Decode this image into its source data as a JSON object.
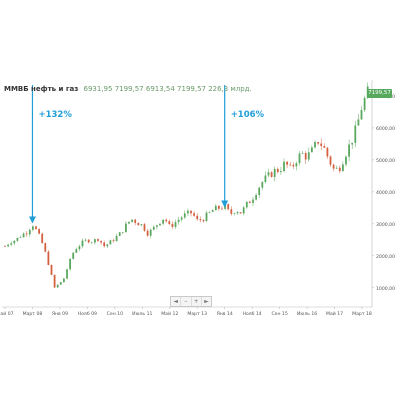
{
  "header": {
    "title": "ММВБ нефть и газ",
    "values": "6931,95  7199,57  6913,54  7199,57  226,3 млрд."
  },
  "last_price_tag": "7199,57",
  "annotations": [
    {
      "label": "+132%",
      "at_x": "Март 08",
      "arrow_to_y": 3000
    },
    {
      "label": "+106%",
      "at_x": "Янв 14",
      "arrow_to_y": 3500
    }
  ],
  "nav": [
    "◄",
    "–",
    "+",
    "►"
  ],
  "chart_data": {
    "type": "candlestick",
    "title": "ММВБ нефть и газ",
    "xlabel": "",
    "ylabel": "",
    "x_ticks": [
      "Май 07",
      "Март 08",
      "Янв 09",
      "Нояб 09",
      "Сен 10",
      "Июль 11",
      "Май 12",
      "Март 13",
      "Янв 14",
      "Нояб 14",
      "Сен 15",
      "Июль 16",
      "Май 17",
      "Март 18"
    ],
    "y_ticks": [
      1000,
      2000,
      3000,
      4000,
      5000,
      6000,
      7000
    ],
    "y_tick_labels": [
      "1000,00",
      "2000,00",
      "3000,00",
      "4000,00",
      "5000,00",
      "6000,00",
      "7000,00"
    ],
    "ylim": [
      400,
      7500
    ],
    "grid": false,
    "legend": "none",
    "colors": {
      "up": "#5aa85f",
      "down": "#d3603f",
      "annotation": "#1f9ed8",
      "axis": "#bbbbbb"
    },
    "points": [
      [
        "Май 07",
        2300
      ],
      [
        "Июль 07",
        2450
      ],
      [
        "Сен 07",
        2500
      ],
      [
        "Нояб 07",
        2650
      ],
      [
        "Янв 08",
        2750
      ],
      [
        "Март 08",
        3000
      ],
      [
        "Май 08",
        2700
      ],
      [
        "Июль 08",
        2300
      ],
      [
        "Сен 08",
        1700
      ],
      [
        "Нояб 08",
        1000
      ],
      [
        "Янв 09",
        1150
      ],
      [
        "Март 09",
        1350
      ],
      [
        "Май 09",
        2000
      ],
      [
        "Июль 09",
        2250
      ],
      [
        "Сен 09",
        2400
      ],
      [
        "Нояб 09",
        2500
      ],
      [
        "Янв 10",
        2450
      ],
      [
        "Март 10",
        2550
      ],
      [
        "Май 10",
        2300
      ],
      [
        "Июль 10",
        2400
      ],
      [
        "Сен 10",
        2550
      ],
      [
        "Нояб 10",
        2700
      ],
      [
        "Янв 11",
        2950
      ],
      [
        "Март 11",
        3150
      ],
      [
        "Май 11",
        3050
      ],
      [
        "Июль 11",
        2950
      ],
      [
        "Сен 11",
        2700
      ],
      [
        "Нояб 11",
        2850
      ],
      [
        "Янв 12",
        3050
      ],
      [
        "Март 12",
        3200
      ],
      [
        "Май 12",
        2900
      ],
      [
        "Июль 12",
        3050
      ],
      [
        "Сен 12",
        3200
      ],
      [
        "Нояб 12",
        3300
      ],
      [
        "Янв 13",
        3350
      ],
      [
        "Март 13",
        3100
      ],
      [
        "Май 13",
        3150
      ],
      [
        "Июль 13",
        3300
      ],
      [
        "Сен 13",
        3450
      ],
      [
        "Нояб 13",
        3500
      ],
      [
        "Янв 14",
        3550
      ],
      [
        "Март 14",
        3300
      ],
      [
        "Май 14",
        3450
      ],
      [
        "Июль 14",
        3350
      ],
      [
        "Сен 14",
        3600
      ],
      [
        "Нояб 14",
        3800
      ],
      [
        "Янв 15",
        4100
      ],
      [
        "Март 15",
        4350
      ],
      [
        "Май 15",
        4500
      ],
      [
        "Июль 15",
        4650
      ],
      [
        "Сен 15",
        4700
      ],
      [
        "Нояб 15",
        4900
      ],
      [
        "Янв 16",
        4700
      ],
      [
        "Март 16",
        5000
      ],
      [
        "Май 16",
        5200
      ],
      [
        "Июль 16",
        5100
      ],
      [
        "Сен 16",
        5300
      ],
      [
        "Нояб 16",
        5600
      ],
      [
        "Янв 17",
        5400
      ],
      [
        "Март 17",
        5000
      ],
      [
        "Май 17",
        4650
      ],
      [
        "Июль 17",
        4800
      ],
      [
        "Сен 17",
        5200
      ],
      [
        "Нояб 17",
        5550
      ],
      [
        "Янв 18",
        6000
      ],
      [
        "Март 18",
        6700
      ],
      [
        "Апр 18",
        7200
      ]
    ]
  }
}
